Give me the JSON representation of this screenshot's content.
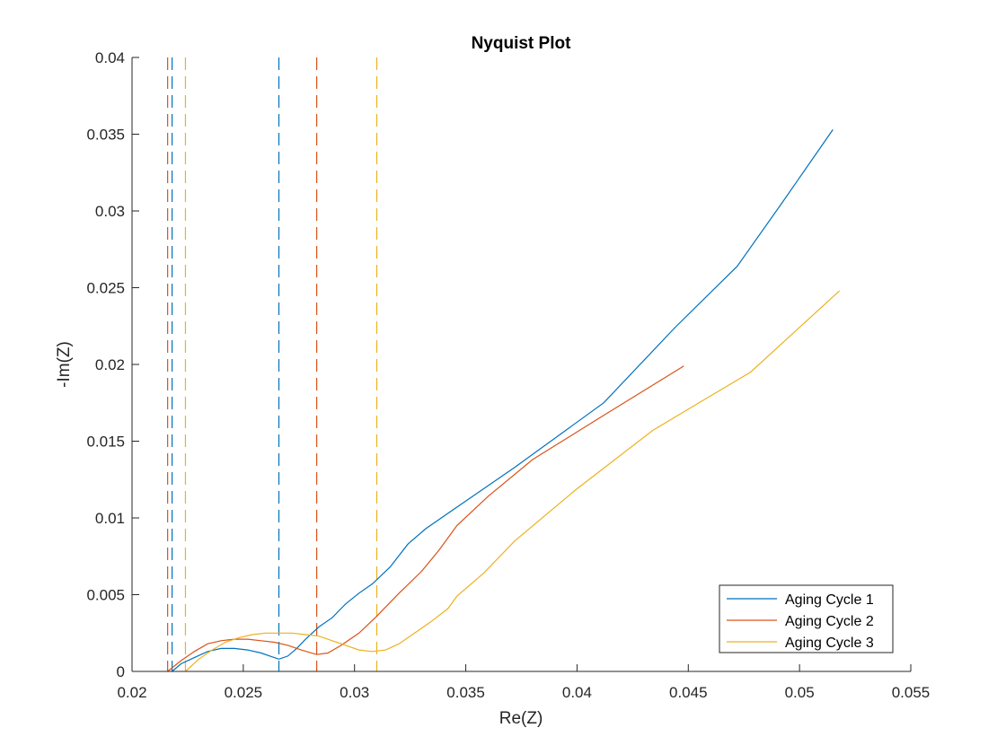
{
  "chart_data": {
    "type": "line",
    "title": "Nyquist Plot",
    "xlabel": "Re(Z)",
    "ylabel": "-Im(Z)",
    "xlim": [
      0.02,
      0.055
    ],
    "ylim": [
      0,
      0.04
    ],
    "xticks": [
      0.02,
      0.025,
      0.03,
      0.035,
      0.04,
      0.045,
      0.05,
      0.055
    ],
    "xtick_labels": [
      "0.02",
      "0.025",
      "0.03",
      "0.035",
      "0.04",
      "0.045",
      "0.05",
      "0.055"
    ],
    "yticks": [
      0,
      0.005,
      0.01,
      0.015,
      0.02,
      0.025,
      0.03,
      0.035,
      0.04
    ],
    "ytick_labels": [
      "0",
      "0.005",
      "0.01",
      "0.015",
      "0.02",
      "0.025",
      "0.03",
      "0.035",
      "0.04"
    ],
    "grid": false,
    "legend_position": "bottom-right",
    "series": [
      {
        "name": "Aging Cycle 1",
        "color": "#0072BD",
        "points": [
          [
            0.0218,
            0.0
          ],
          [
            0.0222,
            0.0005
          ],
          [
            0.0228,
            0.0009
          ],
          [
            0.0234,
            0.0013
          ],
          [
            0.024,
            0.0015
          ],
          [
            0.0246,
            0.0015
          ],
          [
            0.0252,
            0.0014
          ],
          [
            0.0258,
            0.0012
          ],
          [
            0.0262,
            0.001
          ],
          [
            0.0266,
            0.0008
          ],
          [
            0.027,
            0.001
          ],
          [
            0.0274,
            0.0015
          ],
          [
            0.0278,
            0.0021
          ],
          [
            0.0284,
            0.0029
          ],
          [
            0.029,
            0.0035
          ],
          [
            0.0296,
            0.0044
          ],
          [
            0.0302,
            0.0051
          ],
          [
            0.0308,
            0.0057
          ],
          [
            0.0316,
            0.0068
          ],
          [
            0.0324,
            0.0083
          ],
          [
            0.0332,
            0.0093
          ],
          [
            0.0348,
            0.0109
          ],
          [
            0.0372,
            0.0133
          ],
          [
            0.0412,
            0.0175
          ],
          [
            0.0444,
            0.0224
          ],
          [
            0.0472,
            0.0264
          ],
          [
            0.0492,
            0.0305
          ],
          [
            0.0515,
            0.0353
          ]
        ]
      },
      {
        "name": "Aging Cycle 2",
        "color": "#D95319",
        "points": [
          [
            0.0216,
            0.0
          ],
          [
            0.0222,
            0.0007
          ],
          [
            0.0228,
            0.0013
          ],
          [
            0.0234,
            0.0018
          ],
          [
            0.024,
            0.002
          ],
          [
            0.0246,
            0.0021
          ],
          [
            0.0252,
            0.0021
          ],
          [
            0.0258,
            0.002
          ],
          [
            0.0264,
            0.0019
          ],
          [
            0.027,
            0.0017
          ],
          [
            0.0276,
            0.0014
          ],
          [
            0.0283,
            0.0011
          ],
          [
            0.0288,
            0.0012
          ],
          [
            0.0294,
            0.0017
          ],
          [
            0.0302,
            0.0025
          ],
          [
            0.031,
            0.0036
          ],
          [
            0.032,
            0.0051
          ],
          [
            0.033,
            0.0065
          ],
          [
            0.0338,
            0.0079
          ],
          [
            0.0346,
            0.0095
          ],
          [
            0.036,
            0.0114
          ],
          [
            0.038,
            0.0138
          ],
          [
            0.041,
            0.0165
          ],
          [
            0.0448,
            0.0199
          ]
        ]
      },
      {
        "name": "Aging Cycle 3",
        "color": "#EDB120",
        "points": [
          [
            0.0224,
            0.0
          ],
          [
            0.023,
            0.0008
          ],
          [
            0.0236,
            0.0014
          ],
          [
            0.0242,
            0.0019
          ],
          [
            0.0248,
            0.0022
          ],
          [
            0.0254,
            0.0024
          ],
          [
            0.026,
            0.0025
          ],
          [
            0.0266,
            0.0025
          ],
          [
            0.0272,
            0.0025
          ],
          [
            0.0278,
            0.0024
          ],
          [
            0.0284,
            0.0023
          ],
          [
            0.029,
            0.002
          ],
          [
            0.0296,
            0.0017
          ],
          [
            0.0302,
            0.0014
          ],
          [
            0.0308,
            0.0013
          ],
          [
            0.0314,
            0.0014
          ],
          [
            0.032,
            0.0018
          ],
          [
            0.0326,
            0.0024
          ],
          [
            0.0334,
            0.0032
          ],
          [
            0.0342,
            0.0041
          ],
          [
            0.0346,
            0.0049
          ],
          [
            0.0358,
            0.0064
          ],
          [
            0.0372,
            0.0085
          ],
          [
            0.04,
            0.0119
          ],
          [
            0.0434,
            0.0157
          ],
          [
            0.0456,
            0.0176
          ],
          [
            0.0478,
            0.0195
          ],
          [
            0.0518,
            0.0248
          ]
        ]
      }
    ],
    "vertical_lines": [
      {
        "x": 0.0216,
        "color": "#D95319",
        "style": "dashed"
      },
      {
        "x": 0.0218,
        "color": "#0072BD",
        "style": "dashed"
      },
      {
        "x": 0.0224,
        "color": "#EDB120",
        "style": "dashed"
      },
      {
        "x": 0.0266,
        "color": "#0072BD",
        "style": "dashed"
      },
      {
        "x": 0.0283,
        "color": "#D95319",
        "style": "dashed"
      },
      {
        "x": 0.031,
        "color": "#EDB120",
        "style": "dashed"
      }
    ]
  }
}
